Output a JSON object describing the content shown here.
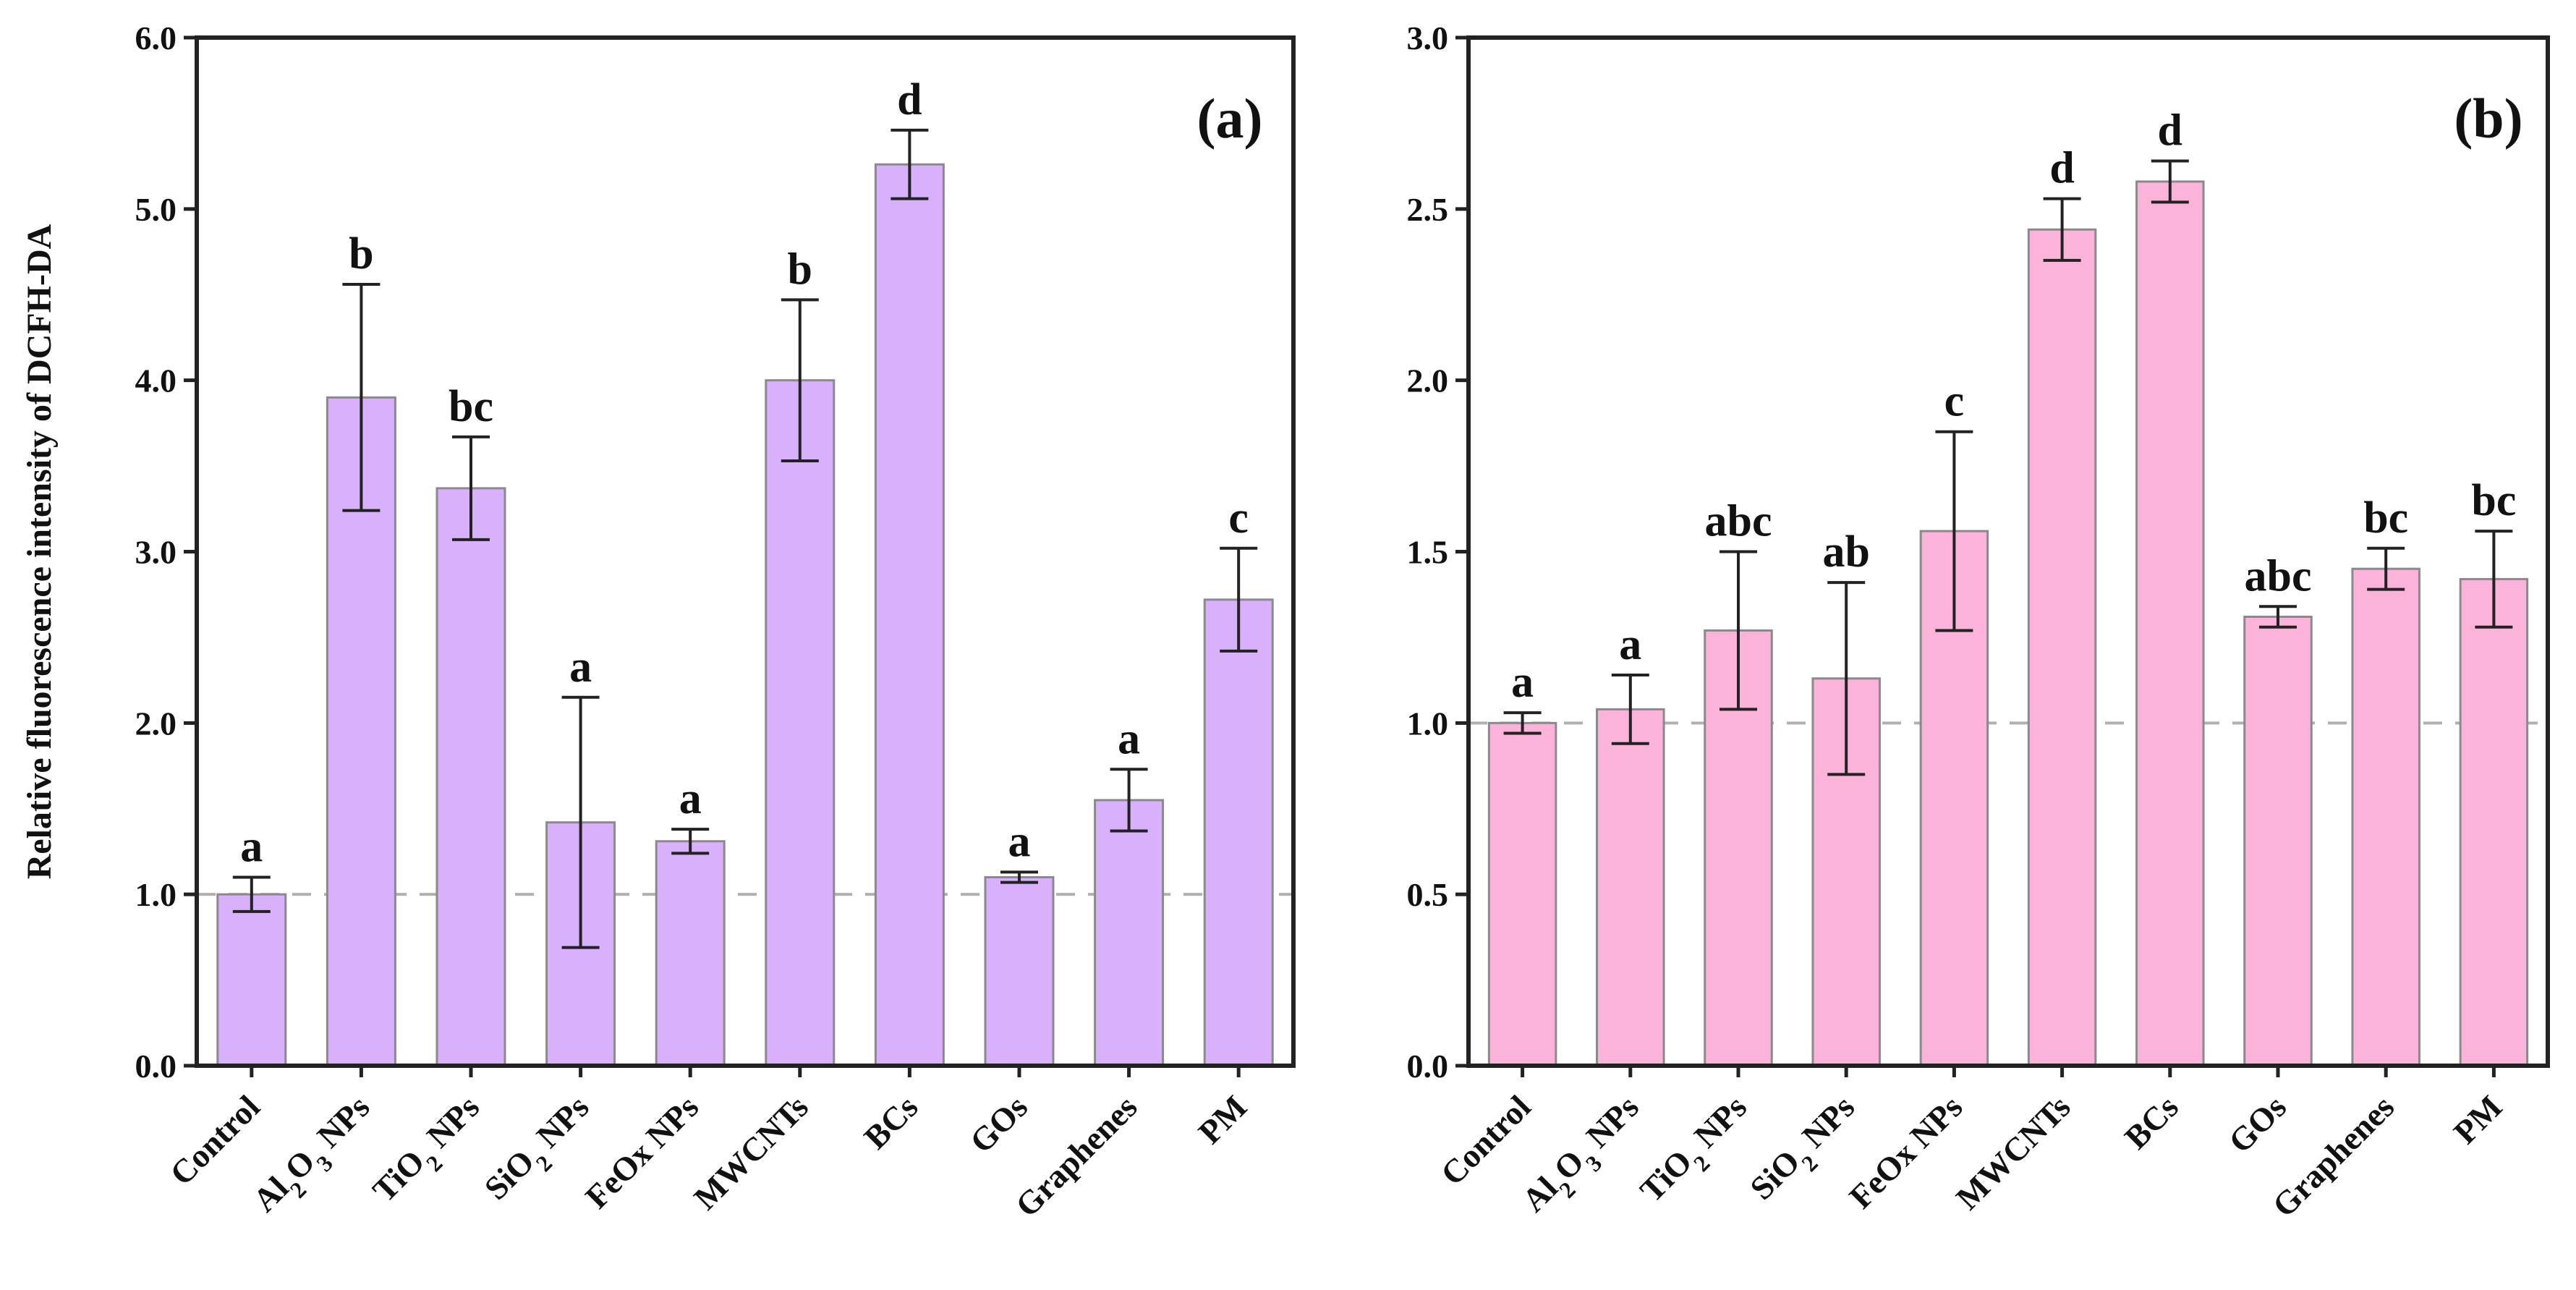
{
  "chart_data": [
    {
      "panel": "(a)",
      "type": "bar",
      "ylabel": "Relative fluorescence intensity of DCFH-DA",
      "ylim": [
        0,
        6
      ],
      "yticks": [
        "0.0",
        "1.0",
        "2.0",
        "3.0",
        "4.0",
        "5.0",
        "6.0"
      ],
      "reference_line": 1.0,
      "bar_color": "#d9b0fb",
      "categories": [
        {
          "pre": "Control",
          "sub": "",
          "post": ""
        },
        {
          "pre": "Al",
          "sub": "2",
          "post": "O",
          "sub2": "3",
          "post2": " NPs"
        },
        {
          "pre": "TiO",
          "sub": "2",
          "post": " NPs"
        },
        {
          "pre": "SiO",
          "sub": "2",
          "post": " NPs"
        },
        {
          "pre": "FeOx NPs",
          "sub": "",
          "post": ""
        },
        {
          "pre": "MWCNTs",
          "sub": "",
          "post": ""
        },
        {
          "pre": "BCs",
          "sub": "",
          "post": ""
        },
        {
          "pre": "GOs",
          "sub": "",
          "post": ""
        },
        {
          "pre": "Graphenes",
          "sub": "",
          "post": ""
        },
        {
          "pre": "PM",
          "sub": "",
          "post": ""
        }
      ],
      "values": [
        1.0,
        3.9,
        3.37,
        1.42,
        1.31,
        4.0,
        5.26,
        1.1,
        1.55,
        2.72
      ],
      "errors": [
        0.1,
        0.66,
        0.3,
        0.73,
        0.07,
        0.47,
        0.2,
        0.03,
        0.18,
        0.3
      ],
      "letters": [
        "a",
        "b",
        "bc",
        "a",
        "a",
        "b",
        "d",
        "a",
        "a",
        "c"
      ]
    },
    {
      "panel": "(b)",
      "type": "bar",
      "ylabel": "",
      "ylim": [
        0,
        3
      ],
      "yticks": [
        "0.0",
        "0.5",
        "1.0",
        "1.5",
        "2.0",
        "2.5",
        "3.0"
      ],
      "reference_line": 1.0,
      "bar_color": "#fbb3d9",
      "categories": [
        {
          "pre": "Control",
          "sub": "",
          "post": ""
        },
        {
          "pre": "Al",
          "sub": "2",
          "post": "O",
          "sub2": "3",
          "post2": " NPs"
        },
        {
          "pre": "TiO",
          "sub": "2",
          "post": " NPs"
        },
        {
          "pre": "SiO",
          "sub": "2",
          "post": " NPs"
        },
        {
          "pre": "FeOx NPs",
          "sub": "",
          "post": ""
        },
        {
          "pre": "MWCNTs",
          "sub": "",
          "post": ""
        },
        {
          "pre": "BCs",
          "sub": "",
          "post": ""
        },
        {
          "pre": "GOs",
          "sub": "",
          "post": ""
        },
        {
          "pre": "Graphenes",
          "sub": "",
          "post": ""
        },
        {
          "pre": "PM",
          "sub": "",
          "post": ""
        }
      ],
      "values": [
        1.0,
        1.04,
        1.27,
        1.13,
        1.56,
        2.44,
        2.58,
        1.31,
        1.45,
        1.42
      ],
      "errors": [
        0.03,
        0.1,
        0.23,
        0.28,
        0.29,
        0.09,
        0.06,
        0.03,
        0.06,
        0.14
      ],
      "letters": [
        "a",
        "a",
        "abc",
        "ab",
        "c",
        "d",
        "d",
        "abc",
        "bc",
        "bc"
      ]
    }
  ]
}
